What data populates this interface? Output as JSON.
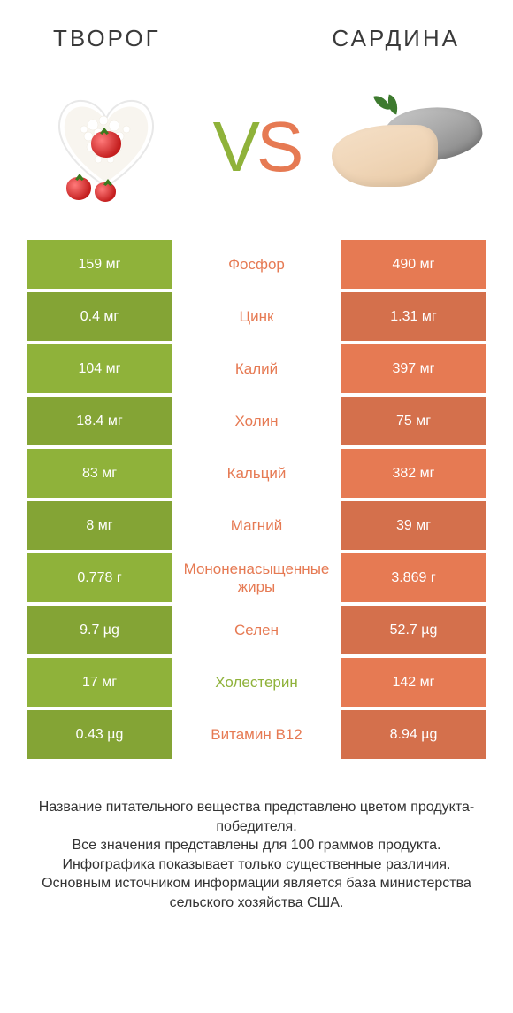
{
  "colors": {
    "left": "#8fb23a",
    "right": "#e67a53",
    "row_shade_factor": 0.92
  },
  "header": {
    "left": "ТВОРОГ",
    "right": "САРДИНА"
  },
  "vs": {
    "v": "V",
    "s": "S"
  },
  "rows": [
    {
      "left": "159 мг",
      "label": "Фосфор",
      "right": "490 мг",
      "winner": "right"
    },
    {
      "left": "0.4 мг",
      "label": "Цинк",
      "right": "1.31 мг",
      "winner": "right"
    },
    {
      "left": "104 мг",
      "label": "Калий",
      "right": "397 мг",
      "winner": "right"
    },
    {
      "left": "18.4 мг",
      "label": "Холин",
      "right": "75 мг",
      "winner": "right"
    },
    {
      "left": "83 мг",
      "label": "Кальций",
      "right": "382 мг",
      "winner": "right"
    },
    {
      "left": "8 мг",
      "label": "Магний",
      "right": "39 мг",
      "winner": "right"
    },
    {
      "left": "0.778 г",
      "label": "Мононенасыщенные жиры",
      "right": "3.869 г",
      "winner": "right"
    },
    {
      "left": "9.7 µg",
      "label": "Селен",
      "right": "52.7 µg",
      "winner": "right"
    },
    {
      "left": "17 мг",
      "label": "Холестерин",
      "right": "142 мг",
      "winner": "left"
    },
    {
      "left": "0.43 µg",
      "label": "Витамин B12",
      "right": "8.94 µg",
      "winner": "right"
    }
  ],
  "footer": "Название питательного вещества представлено цветом продукта-победителя.\nВсе значения представлены для 100 граммов продукта.\nИнфографика показывает только существенные различия.\nОсновным источником информации является база министерства сельского хозяйства США."
}
